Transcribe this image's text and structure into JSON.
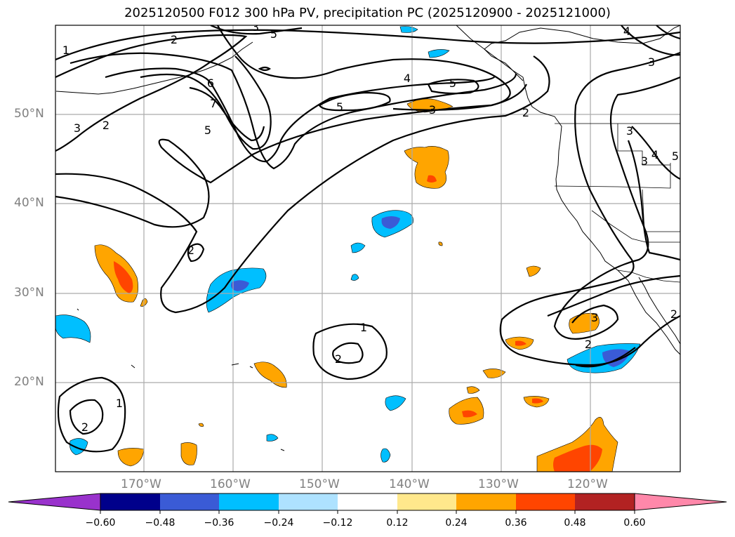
{
  "title": "2025120500 F012 300 hPa PV, precipitation PC (2025120900 - 2025121000)",
  "axes": {
    "lat_labels": [
      "50°N",
      "40°N",
      "30°N",
      "20°N"
    ],
    "lon_labels": [
      "170°W",
      "160°W",
      "150°W",
      "140°W",
      "130°W",
      "120°W"
    ]
  },
  "contours": {
    "pv_labels": [
      "1",
      "2",
      "6",
      "5",
      "5",
      "4",
      "5",
      "3",
      "7",
      "5",
      "3",
      "2",
      "2",
      "4",
      "3",
      "3",
      "2",
      "1",
      "2",
      "2",
      "1",
      "3",
      "2",
      "2",
      "3",
      "4",
      "3",
      "5"
    ]
  },
  "colorbar": {
    "ticks": [
      "−0.60",
      "−0.48",
      "−0.36",
      "−0.24",
      "−0.12",
      "0.12",
      "0.24",
      "0.36",
      "0.48",
      "0.60"
    ],
    "colors": [
      "#9932cc",
      "#00008b",
      "#3a5bd6",
      "#00bfff",
      "#aee2ff",
      "#ffffff",
      "#ffe88c",
      "#ffa500",
      "#ff4500",
      "#b22222",
      "#ff88aa"
    ]
  },
  "colors": {
    "neg_light": "#00bfff",
    "neg_dark": "#3a5bd6",
    "pos_light": "#ffa500",
    "pos_dark": "#ff4500",
    "grid": "#aaaaaa",
    "axis_label": "#808080"
  }
}
